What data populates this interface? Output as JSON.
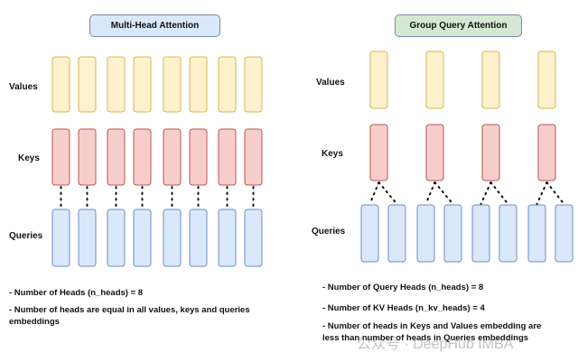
{
  "mha": {
    "title": "Multi-Head Attention",
    "title_color": "#dae8fc",
    "labels": {
      "values": "Values",
      "keys": "Keys",
      "queries": "Queries"
    },
    "n_heads": 8,
    "notes": [
      "- Number of Heads (n_heads) = 8",
      "- Number of heads are equal in all values, keys and queries embeddings"
    ]
  },
  "gqa": {
    "title": "Group Query Attention",
    "title_color": "#d5e8d4",
    "labels": {
      "values": "Values",
      "keys": "Keys",
      "queries": "Queries"
    },
    "n_heads": 8,
    "n_kv_heads": 4,
    "notes": [
      "- Number of Query Heads (n_heads) = 8",
      "- Number of KV Heads (n_kv_heads) = 4",
      "- Number of heads in Keys and Values embedding are less than number of heads in Queries embeddings"
    ]
  },
  "colors": {
    "values": "#fff2cc",
    "values_border": "#d6b656",
    "keys": "#f8cecc",
    "keys_border": "#b85450",
    "queries": "#dae8fc",
    "queries_border": "#6c8ebf"
  },
  "watermark": "公众号 · DeepHub IMBA"
}
